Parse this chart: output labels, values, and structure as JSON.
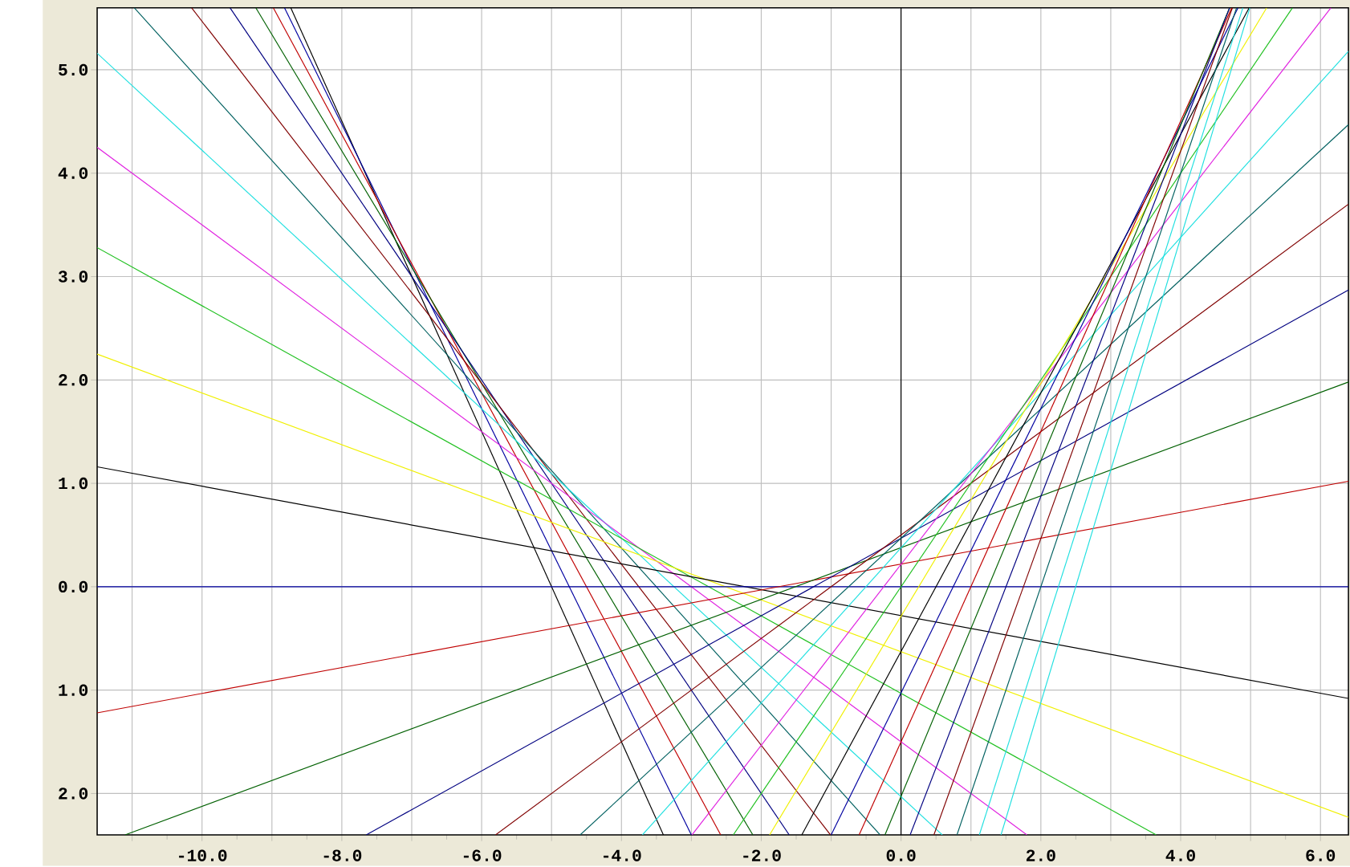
{
  "chart_data": {
    "type": "line",
    "marker": "none",
    "grid": true,
    "xlim": [
      -11.5,
      6.4
    ],
    "ylim": [
      -2.4,
      5.6
    ],
    "xticks": [
      {
        "value": -11,
        "label": null
      },
      {
        "value": -10,
        "label": "-10.0"
      },
      {
        "value": -9,
        "label": null
      },
      {
        "value": -8,
        "label": "-8.0"
      },
      {
        "value": -7,
        "label": null
      },
      {
        "value": -6,
        "label": "-6.0"
      },
      {
        "value": -5,
        "label": null
      },
      {
        "value": -4,
        "label": "-4.0"
      },
      {
        "value": -3,
        "label": null
      },
      {
        "value": -2,
        "label": "-2.0"
      },
      {
        "value": -1,
        "label": null
      },
      {
        "value": 0,
        "label": "0.0"
      },
      {
        "value": 1,
        "label": null
      },
      {
        "value": 2,
        "label": "2.0"
      },
      {
        "value": 3,
        "label": null
      },
      {
        "value": 4,
        "label": "4.0"
      },
      {
        "value": 5,
        "label": null
      },
      {
        "value": 6,
        "label": "6.0"
      }
    ],
    "yticks": [
      {
        "value": -2,
        "label": "2.0"
      },
      {
        "value": -1,
        "label": "1.0"
      },
      {
        "value": 0,
        "label": "0.0"
      },
      {
        "value": 1,
        "label": "1.0"
      },
      {
        "value": 2,
        "label": "2.0"
      },
      {
        "value": 3,
        "label": "3.0"
      },
      {
        "value": 4,
        "label": "4.0"
      },
      {
        "value": 5,
        "label": "5.0"
      }
    ],
    "ref_lines": [
      {
        "axis": "x",
        "value": 0,
        "color": "#000000"
      }
    ],
    "series": [
      {
        "color": "#000000",
        "x": [
          -8.73,
          -3.4
        ],
        "values": [
          5.6,
          -2.4
        ]
      },
      {
        "color": "#0000a0",
        "x": [
          -8.82,
          -3.0
        ],
        "values": [
          5.6,
          -2.4
        ]
      },
      {
        "color": "#c00000",
        "x": [
          -8.98,
          -2.58
        ],
        "values": [
          5.6,
          -2.4
        ]
      },
      {
        "color": "#006000",
        "x": [
          -9.23,
          -2.12
        ],
        "values": [
          5.6,
          -2.4
        ]
      },
      {
        "color": "#000080",
        "x": [
          -9.6,
          -1.6
        ],
        "values": [
          5.6,
          -2.4
        ]
      },
      {
        "color": "#800000",
        "x": [
          -10.15,
          -1.01
        ],
        "values": [
          5.6,
          -2.4
        ]
      },
      {
        "color": "#006060",
        "x": [
          -10.97,
          -0.3
        ],
        "values": [
          5.6,
          -2.4
        ]
      },
      {
        "color": "#20e0e0",
        "x": [
          -11.5,
          0.59
        ],
        "values": [
          5.16,
          -2.4
        ]
      },
      {
        "color": "#e020e0",
        "x": [
          -11.5,
          1.8
        ],
        "values": [
          4.25,
          -2.4
        ]
      },
      {
        "color": "#20c020",
        "x": [
          -11.5,
          3.65
        ],
        "values": [
          3.28,
          -2.4
        ]
      },
      {
        "color": "#f0f000",
        "x": [
          -11.5,
          6.4
        ],
        "values": [
          2.25,
          -2.23
        ]
      },
      {
        "color": "#000000",
        "x": [
          -11.5,
          6.4
        ],
        "values": [
          1.16,
          -1.08
        ]
      },
      {
        "color": "#0000a0",
        "x": [
          -11.5,
          6.4
        ],
        "values": [
          0,
          0
        ]
      },
      {
        "color": "#c00000",
        "x": [
          -11.5,
          6.4
        ],
        "values": [
          -1.22,
          1.02
        ]
      },
      {
        "color": "#006000",
        "x": [
          -11.1,
          6.4
        ],
        "values": [
          -2.4,
          1.98
        ]
      },
      {
        "color": "#000080",
        "x": [
          -7.65,
          6.4
        ],
        "values": [
          -2.4,
          2.87
        ]
      },
      {
        "color": "#800000",
        "x": [
          -5.8,
          6.4
        ],
        "values": [
          -2.4,
          3.7
        ]
      },
      {
        "color": "#006060",
        "x": [
          -4.59,
          6.4
        ],
        "values": [
          -2.4,
          4.47
        ]
      },
      {
        "color": "#20e0e0",
        "x": [
          -3.7,
          6.4
        ],
        "values": [
          -2.4,
          5.18
        ]
      },
      {
        "color": "#e020e0",
        "x": [
          -2.99,
          6.15
        ],
        "values": [
          -2.4,
          5.6
        ]
      },
      {
        "color": "#20c020",
        "x": [
          -2.4,
          5.6
        ],
        "values": [
          -2.4,
          5.6
        ]
      },
      {
        "color": "#f0f000",
        "x": [
          -1.88,
          5.23
        ],
        "values": [
          -2.4,
          5.6
        ]
      },
      {
        "color": "#000000",
        "x": [
          -1.42,
          4.98
        ],
        "values": [
          -2.4,
          5.6
        ]
      },
      {
        "color": "#0000a0",
        "x": [
          -1.0,
          4.82
        ],
        "values": [
          -2.4,
          5.6
        ]
      },
      {
        "color": "#c00000",
        "x": [
          -0.6,
          4.73
        ],
        "values": [
          -2.4,
          5.6
        ]
      },
      {
        "color": "#006000",
        "x": [
          -0.23,
          4.7
        ],
        "values": [
          -2.4,
          5.6
        ]
      },
      {
        "color": "#000080",
        "x": [
          0.13,
          4.7
        ],
        "values": [
          -2.4,
          5.6
        ]
      },
      {
        "color": "#800000",
        "x": [
          0.47,
          4.74
        ],
        "values": [
          -2.4,
          5.6
        ]
      },
      {
        "color": "#006060",
        "x": [
          0.8,
          4.8
        ],
        "values": [
          -2.4,
          5.6
        ]
      },
      {
        "color": "#20e0e0",
        "x": [
          1.12,
          4.89
        ],
        "values": [
          -2.4,
          5.6
        ]
      },
      {
        "color": "#20e0e0",
        "x": [
          1.43,
          4.99
        ],
        "values": [
          -2.4,
          5.6
        ]
      }
    ]
  }
}
